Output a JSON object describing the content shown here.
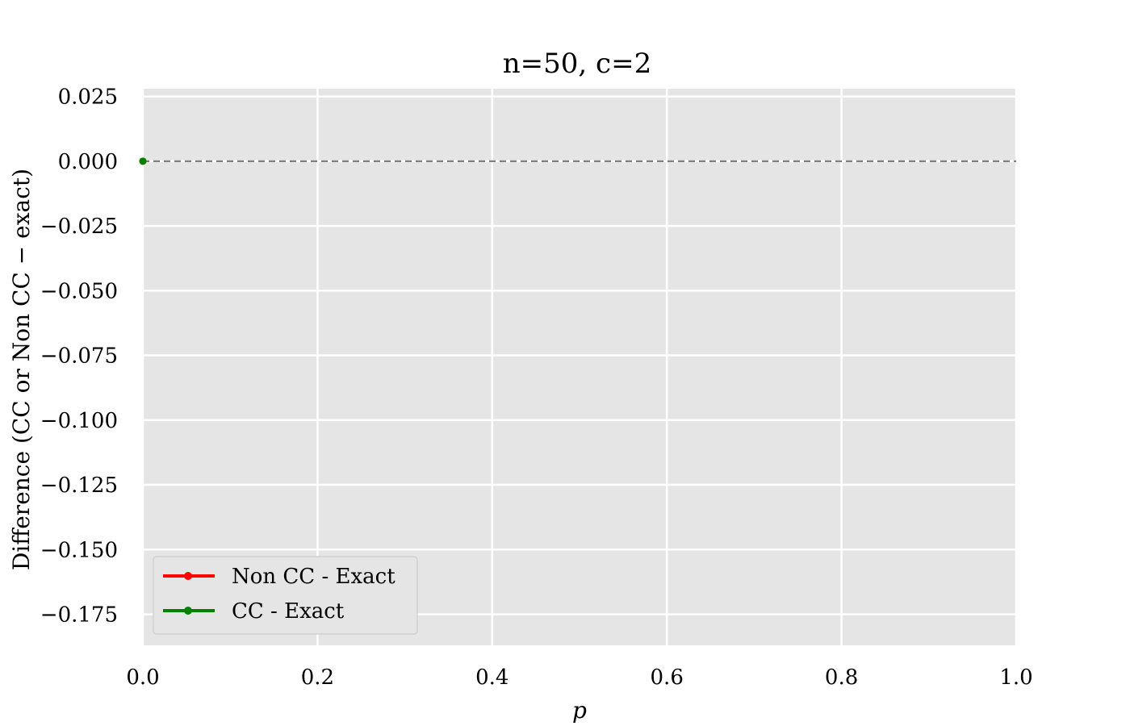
{
  "chart_data": {
    "type": "line",
    "title": "n=50, c=2",
    "xlabel": "p",
    "ylabel": "Difference (CC or Non CC − exact)",
    "xlim": [
      0.0,
      1.0
    ],
    "ylim": [
      -0.187,
      0.028
    ],
    "x_ticks": [
      0.0,
      0.2,
      0.4,
      0.6,
      0.8,
      1.0
    ],
    "x_tick_labels": [
      "0.0",
      "0.2",
      "0.4",
      "0.6",
      "0.8",
      "1.0"
    ],
    "y_ticks": [
      0.025,
      0.0,
      -0.025,
      -0.05,
      -0.075,
      -0.1,
      -0.125,
      -0.15,
      -0.175
    ],
    "y_tick_labels": [
      "0.025",
      "0.000",
      "−0.025",
      "−0.050",
      "−0.075",
      "−0.100",
      "−0.125",
      "−0.150",
      "−0.175"
    ],
    "grid": true,
    "legend_position": "lower-left",
    "reference_line": {
      "y": 0.0,
      "style": "dashed",
      "color": "#808080"
    },
    "series": [
      {
        "name": "Non CC - Exact",
        "color": "#ff0000",
        "x": [
          0.0
        ],
        "y": [
          0.0
        ]
      },
      {
        "name": "CC - Exact",
        "color": "#008000",
        "x": [
          0.0
        ],
        "y": [
          0.0
        ]
      }
    ],
    "plot_background": "#e5e5e5",
    "grid_color": "#ffffff"
  }
}
